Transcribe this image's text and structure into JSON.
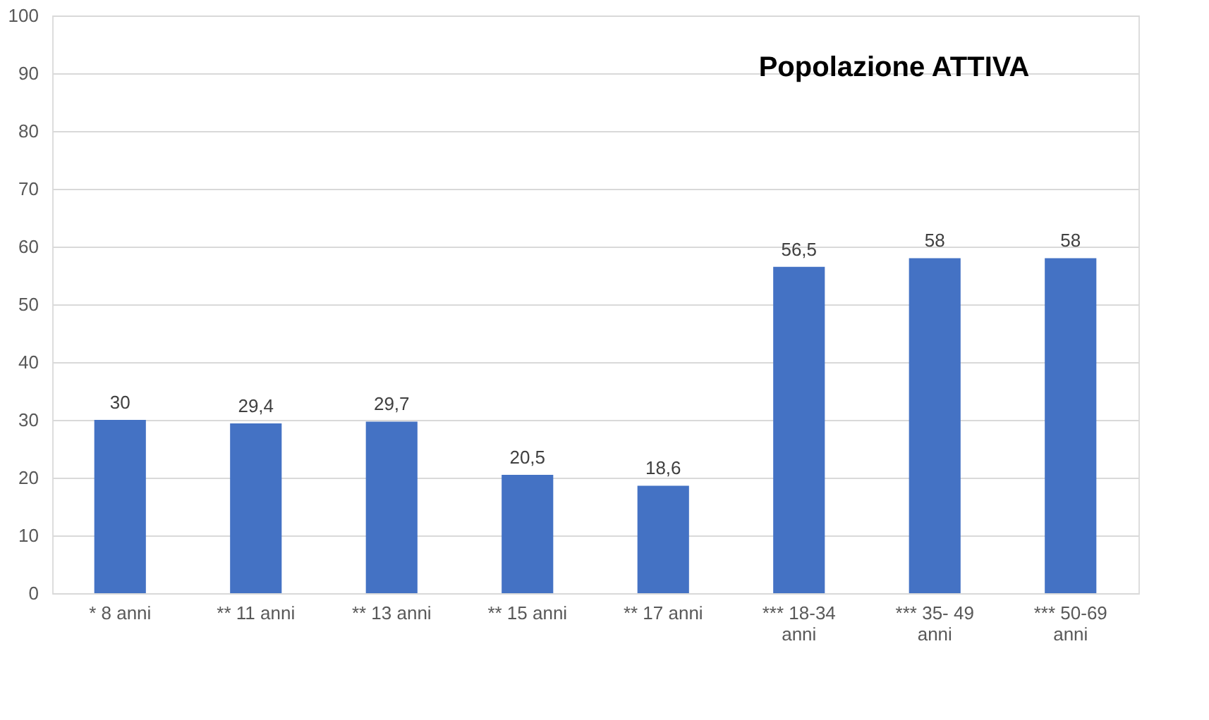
{
  "chart_data": {
    "type": "bar",
    "title": "Popolazione ATTIVA",
    "categories": [
      "* 8 anni",
      "** 11 anni",
      "** 13 anni",
      "** 15 anni",
      "** 17 anni",
      "*** 18-34 anni",
      "*** 35- 49 anni",
      "*** 50-69 anni"
    ],
    "values": [
      30,
      29.4,
      29.7,
      20.5,
      18.6,
      56.5,
      58,
      58
    ],
    "value_labels": [
      "30",
      "29,4",
      "29,7",
      "20,5",
      "18,6",
      "56,5",
      "58",
      "58"
    ],
    "color": "#4472c4",
    "ylim": [
      0,
      100
    ],
    "yticks": [
      0,
      10,
      20,
      30,
      40,
      50,
      60,
      70,
      80,
      90,
      100
    ],
    "grid": "y"
  }
}
